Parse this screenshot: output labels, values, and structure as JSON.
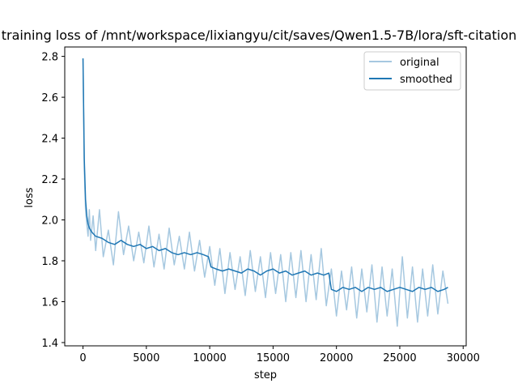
{
  "chart_data": {
    "type": "line",
    "title": "training loss of /mnt/workspace/lixiangyu/cit/saves/Qwen1.5-7B/lora/sft-citation",
    "xlabel": "step",
    "ylabel": "loss",
    "xlim": [
      -1440,
      30240
    ],
    "ylim": [
      1.384,
      2.846
    ],
    "xticks": [
      0,
      5000,
      10000,
      15000,
      20000,
      25000,
      30000
    ],
    "xtick_labels": [
      "0",
      "5000",
      "10000",
      "15000",
      "20000",
      "25000",
      "30000"
    ],
    "yticks": [
      1.4,
      1.6,
      1.8,
      2.0,
      2.2,
      2.4,
      2.6,
      2.8
    ],
    "ytick_labels": [
      "1.4",
      "1.6",
      "1.8",
      "2.0",
      "2.2",
      "2.4",
      "2.6",
      "2.8"
    ],
    "grid": false,
    "legend_position": "upper right",
    "series": [
      {
        "name": "original",
        "color": "#a6c8e0",
        "line_width": 1.5,
        "x": [
          0,
          100,
          200,
          300,
          400,
          500,
          600,
          800,
          1000,
          1300,
          1600,
          2000,
          2400,
          2800,
          3200,
          3600,
          4000,
          4400,
          4800,
          5200,
          5600,
          6000,
          6400,
          6800,
          7200,
          7600,
          8000,
          8400,
          8800,
          9200,
          9600,
          10000,
          10400,
          10800,
          11200,
          11600,
          12000,
          12400,
          12800,
          13200,
          13600,
          14000,
          14400,
          14800,
          15200,
          15600,
          16000,
          16400,
          16800,
          17200,
          17600,
          18000,
          18400,
          18800,
          19200,
          19600,
          20000,
          20400,
          20800,
          21200,
          21600,
          22000,
          22400,
          22800,
          23200,
          23600,
          24000,
          24400,
          24800,
          25200,
          25600,
          26000,
          26400,
          26800,
          27200,
          27600,
          28000,
          28400,
          28800
        ],
        "y": [
          2.79,
          2.25,
          2.05,
          1.98,
          1.92,
          2.05,
          1.9,
          2.02,
          1.85,
          2.05,
          1.82,
          1.95,
          1.78,
          2.04,
          1.83,
          1.97,
          1.8,
          1.94,
          1.79,
          1.97,
          1.77,
          1.93,
          1.76,
          1.96,
          1.78,
          1.92,
          1.76,
          1.94,
          1.75,
          1.9,
          1.72,
          1.87,
          1.68,
          1.86,
          1.64,
          1.84,
          1.66,
          1.82,
          1.63,
          1.85,
          1.65,
          1.82,
          1.62,
          1.84,
          1.64,
          1.83,
          1.6,
          1.84,
          1.62,
          1.85,
          1.6,
          1.83,
          1.61,
          1.86,
          1.58,
          1.76,
          1.53,
          1.75,
          1.56,
          1.77,
          1.52,
          1.76,
          1.55,
          1.78,
          1.5,
          1.77,
          1.53,
          1.76,
          1.48,
          1.82,
          1.52,
          1.77,
          1.5,
          1.76,
          1.53,
          1.78,
          1.54,
          1.75,
          1.59
        ]
      },
      {
        "name": "smoothed",
        "color": "#1f77b4",
        "line_width": 1.5,
        "x": [
          0,
          100,
          200,
          300,
          400,
          500,
          700,
          1000,
          1500,
          2000,
          2500,
          3000,
          3500,
          4000,
          4500,
          5000,
          5500,
          6000,
          6500,
          7000,
          7500,
          8000,
          8500,
          9000,
          9500,
          9900,
          10100,
          10500,
          11000,
          11500,
          12000,
          12500,
          13000,
          13500,
          14000,
          14500,
          15000,
          15500,
          16000,
          16500,
          17000,
          17500,
          18000,
          18500,
          19000,
          19400,
          19600,
          20000,
          20500,
          21000,
          21500,
          22000,
          22500,
          23000,
          23500,
          24000,
          24500,
          25000,
          25500,
          26000,
          26500,
          27000,
          27500,
          28000,
          28500,
          28800
        ],
        "y": [
          2.79,
          2.3,
          2.1,
          2.02,
          1.98,
          1.96,
          1.94,
          1.92,
          1.91,
          1.89,
          1.88,
          1.9,
          1.88,
          1.87,
          1.88,
          1.86,
          1.87,
          1.85,
          1.86,
          1.84,
          1.83,
          1.84,
          1.83,
          1.84,
          1.83,
          1.82,
          1.77,
          1.76,
          1.75,
          1.76,
          1.75,
          1.74,
          1.76,
          1.75,
          1.73,
          1.75,
          1.76,
          1.74,
          1.75,
          1.73,
          1.74,
          1.75,
          1.73,
          1.74,
          1.73,
          1.74,
          1.66,
          1.65,
          1.67,
          1.66,
          1.67,
          1.65,
          1.67,
          1.66,
          1.67,
          1.65,
          1.66,
          1.67,
          1.66,
          1.65,
          1.67,
          1.66,
          1.67,
          1.65,
          1.66,
          1.67
        ]
      }
    ]
  }
}
